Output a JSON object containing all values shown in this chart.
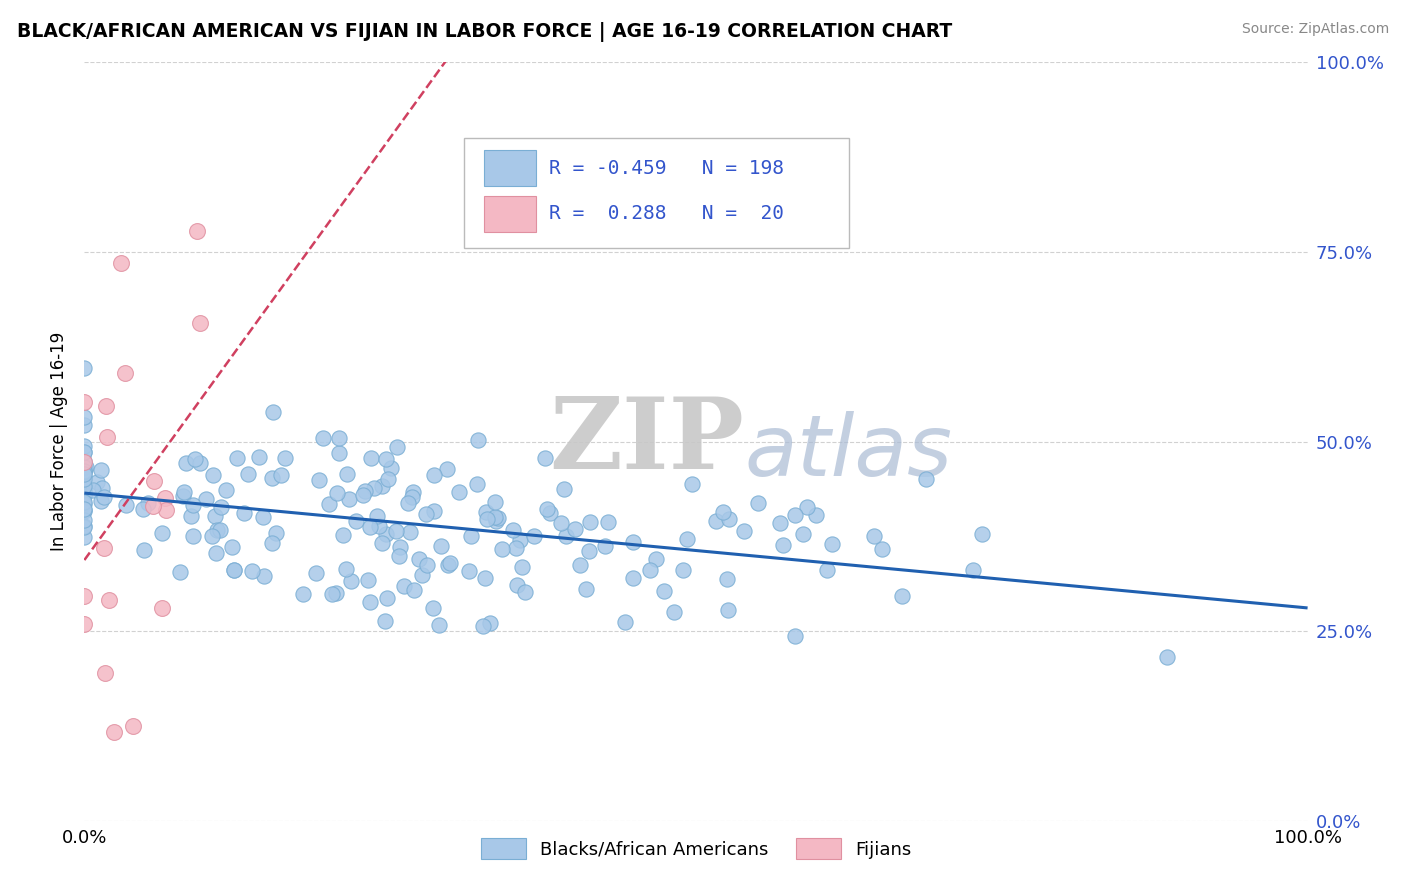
{
  "title": "BLACK/AFRICAN AMERICAN VS FIJIAN IN LABOR FORCE | AGE 16-19 CORRELATION CHART",
  "source": "Source: ZipAtlas.com",
  "ylabel": "In Labor Force | Age 16-19",
  "watermark_zip": "ZIP",
  "watermark_atlas": "atlas",
  "xlim": [
    0.0,
    1.0
  ],
  "ylim": [
    0.0,
    1.0
  ],
  "ytick_positions": [
    0.0,
    0.25,
    0.5,
    0.75,
    1.0
  ],
  "ytick_right_labels": [
    "0.0%",
    "25.0%",
    "50.0%",
    "75.0%",
    "100.0%"
  ],
  "xtick_positions": [
    0.0,
    0.1,
    0.2,
    0.3,
    0.4,
    0.5,
    0.6,
    0.7,
    0.8,
    0.9,
    1.0
  ],
  "blue_scatter_color": "#a8c8e8",
  "blue_scatter_edge": "#7aaed4",
  "pink_scatter_color": "#f4b8c4",
  "pink_scatter_edge": "#e090a0",
  "blue_line_color": "#2060b0",
  "pink_line_color": "#d04060",
  "grid_color": "#cccccc",
  "background_color": "#ffffff",
  "blue_R": -0.459,
  "blue_N": 198,
  "pink_R": 0.288,
  "pink_N": 20,
  "legend_text_color": "#3355cc",
  "seed": 7
}
